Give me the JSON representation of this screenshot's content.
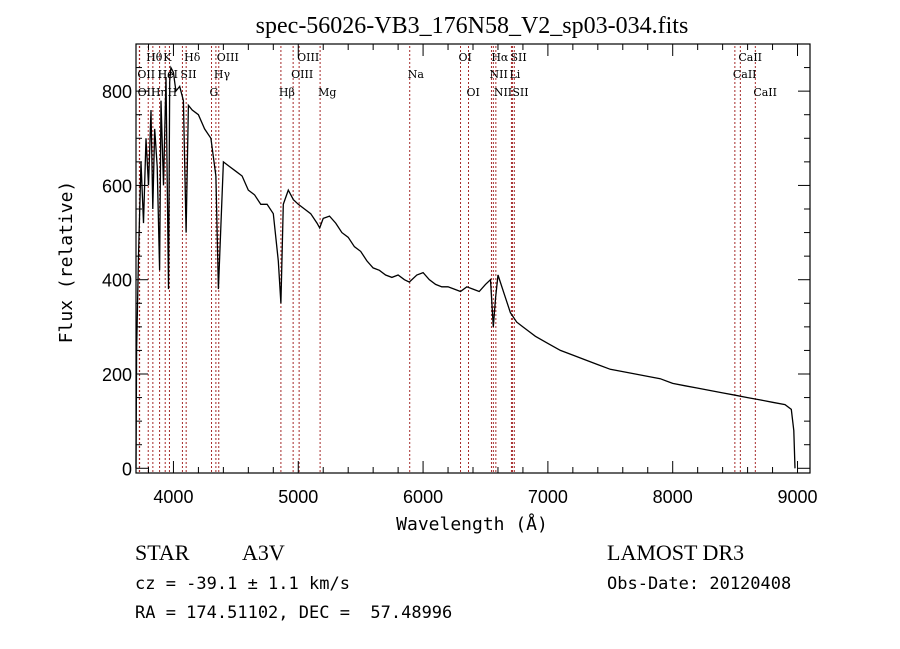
{
  "chart_data": {
    "type": "line",
    "title": "spec-56026-VB3_176N58_V2_sp03-034.fits",
    "xlabel": "Wavelength (Å)",
    "ylabel": "Flux (relative)",
    "xlim": [
      3700,
      9100
    ],
    "ylim": [
      -10,
      900
    ],
    "xticks": [
      4000,
      5000,
      6000,
      7000,
      8000,
      9000
    ],
    "xtick_labels": [
      "4000",
      "5000",
      "6000",
      "7000",
      "8000",
      "9000"
    ],
    "yticks": [
      0,
      200,
      400,
      600,
      800
    ],
    "ytick_labels": [
      "0",
      "200",
      "400",
      "600",
      "800"
    ],
    "grid": false,
    "series": [
      {
        "name": "spectrum",
        "color": "#000000",
        "x": [
          3700,
          3705,
          3720,
          3740,
          3760,
          3780,
          3800,
          3820,
          3835,
          3850,
          3870,
          3889,
          3900,
          3920,
          3940,
          3960,
          3970,
          3980,
          4000,
          4020,
          4050,
          4080,
          4101,
          4120,
          4150,
          4200,
          4250,
          4300,
          4340,
          4360,
          4400,
          4450,
          4500,
          4550,
          4600,
          4650,
          4700,
          4750,
          4800,
          4840,
          4861,
          4880,
          4920,
          4960,
          5000,
          5050,
          5100,
          5150,
          5172,
          5200,
          5250,
          5300,
          5350,
          5400,
          5450,
          5500,
          5550,
          5600,
          5650,
          5700,
          5750,
          5800,
          5850,
          5890,
          5950,
          6000,
          6050,
          6100,
          6150,
          6200,
          6250,
          6300,
          6350,
          6400,
          6450,
          6500,
          6540,
          6563,
          6580,
          6600,
          6650,
          6700,
          6750,
          6800,
          6850,
          6900,
          7000,
          7100,
          7200,
          7300,
          7400,
          7500,
          7600,
          7700,
          7800,
          7900,
          8000,
          8100,
          8200,
          8300,
          8400,
          8500,
          8600,
          8700,
          8800,
          8900,
          8950,
          8970,
          8980
        ],
        "values": [
          0,
          250,
          450,
          650,
          520,
          700,
          600,
          760,
          550,
          720,
          640,
          420,
          780,
          600,
          830,
          380,
          820,
          850,
          840,
          800,
          810,
          780,
          500,
          770,
          760,
          750,
          720,
          700,
          620,
          380,
          650,
          640,
          630,
          620,
          590,
          580,
          560,
          560,
          540,
          440,
          350,
          560,
          590,
          570,
          560,
          550,
          540,
          520,
          510,
          530,
          535,
          520,
          500,
          490,
          470,
          460,
          440,
          425,
          420,
          410,
          405,
          410,
          400,
          395,
          410,
          415,
          400,
          390,
          385,
          385,
          380,
          375,
          385,
          380,
          375,
          390,
          400,
          300,
          360,
          410,
          370,
          330,
          310,
          300,
          290,
          280,
          265,
          250,
          240,
          230,
          220,
          210,
          205,
          200,
          195,
          190,
          180,
          175,
          170,
          165,
          160,
          155,
          150,
          145,
          140,
          135,
          125,
          80,
          0
        ]
      }
    ],
    "line_annotations": [
      {
        "label": "Hθ",
        "wavelength": 3798,
        "row": 1
      },
      {
        "label": "K",
        "wavelength": 3934,
        "row": 1
      },
      {
        "label": "Hδ",
        "wavelength": 4102,
        "row": 1
      },
      {
        "label": "OIII",
        "wavelength": 4363,
        "row": 1
      },
      {
        "label": "OIII",
        "wavelength": 5007,
        "row": 1
      },
      {
        "label": "OI",
        "wavelength": 6300,
        "row": 1
      },
      {
        "label": "Hα",
        "wavelength": 6563,
        "row": 1
      },
      {
        "label": "SII",
        "wavelength": 6716,
        "row": 1
      },
      {
        "label": "CaII",
        "wavelength": 8542,
        "row": 1
      },
      {
        "label": "OII",
        "wavelength": 3727,
        "row": 2
      },
      {
        "label": "Hε",
        "wavelength": 3889,
        "row": 2
      },
      {
        "label": "HeI",
        "wavelength": 3889,
        "row": 2
      },
      {
        "label": "SII",
        "wavelength": 4072,
        "row": 2
      },
      {
        "label": "Hγ",
        "wavelength": 4340,
        "row": 2
      },
      {
        "label": "OIII",
        "wavelength": 4959,
        "row": 2
      },
      {
        "label": "Na",
        "wavelength": 5893,
        "row": 2
      },
      {
        "label": "NII",
        "wavelength": 6548,
        "row": 2
      },
      {
        "label": "Li",
        "wavelength": 6708,
        "row": 2
      },
      {
        "label": "CaII",
        "wavelength": 8498,
        "row": 2
      },
      {
        "label": "OII",
        "wavelength": 3729,
        "row": 3
      },
      {
        "label": "Hη",
        "wavelength": 3835,
        "row": 3
      },
      {
        "label": "H",
        "wavelength": 3968,
        "row": 3
      },
      {
        "label": "G",
        "wavelength": 4305,
        "row": 3
      },
      {
        "label": "Hβ",
        "wavelength": 4861,
        "row": 3
      },
      {
        "label": "Mg",
        "wavelength": 5175,
        "row": 3
      },
      {
        "label": "OI",
        "wavelength": 6364,
        "row": 3
      },
      {
        "label": "NII",
        "wavelength": 6583,
        "row": 3
      },
      {
        "label": "SII",
        "wavelength": 6731,
        "row": 3
      },
      {
        "label": "CaII",
        "wavelength": 8662,
        "row": 3
      }
    ],
    "line_color": "#a52a2a"
  },
  "info": {
    "object_class": "STAR",
    "subclass": "A3V",
    "survey": "LAMOST DR3",
    "redshift": "cz = -39.1 ± 1.1 km/s",
    "obs_date": "Obs-Date: 20120408",
    "coords": "RA = 174.51102, DEC =  57.48996"
  }
}
